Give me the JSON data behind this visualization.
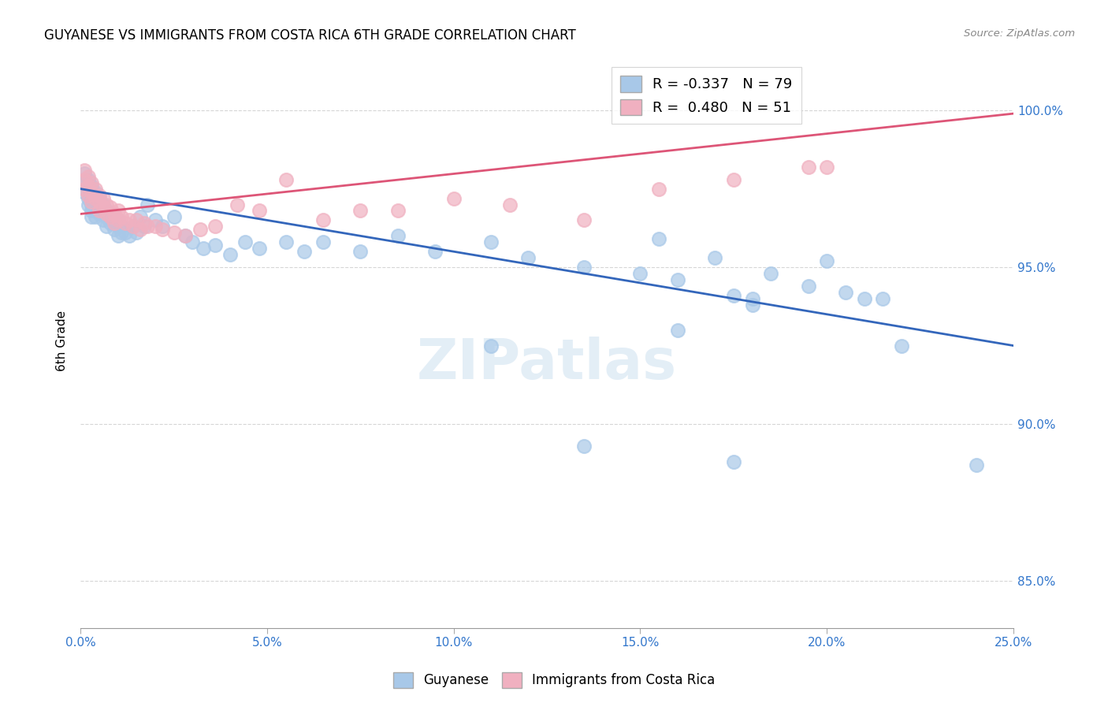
{
  "title": "GUYANESE VS IMMIGRANTS FROM COSTA RICA 6TH GRADE CORRELATION CHART",
  "source": "Source: ZipAtlas.com",
  "ylabel": "6th Grade",
  "xlim": [
    0.0,
    0.25
  ],
  "ylim": [
    0.835,
    1.018
  ],
  "blue_color": "#a8c8e8",
  "pink_color": "#f0b0c0",
  "blue_line_color": "#3366bb",
  "pink_line_color": "#dd5577",
  "blue_line_x": [
    0.0,
    0.25
  ],
  "blue_line_y": [
    0.975,
    0.925
  ],
  "pink_line_x": [
    0.0,
    0.25
  ],
  "pink_line_y": [
    0.967,
    0.999
  ],
  "watermark_text": "ZIPatlas",
  "watermark_fontsize": 52,
  "yticks": [
    0.85,
    0.9,
    0.95,
    1.0
  ],
  "ytick_labels": [
    "85.0%",
    "90.0%",
    "95.0%",
    "100.0%"
  ],
  "xticks": [
    0.0,
    0.05,
    0.1,
    0.15,
    0.2,
    0.25
  ],
  "xtick_labels": [
    "0.0%",
    "5.0%",
    "10.0%",
    "15.0%",
    "20.0%",
    "25.0%"
  ],
  "legend_blue": "R = -0.337   N = 79",
  "legend_pink": "R =  0.480   N = 51",
  "bottom_legend_blue": "Guyanese",
  "bottom_legend_pink": "Immigrants from Costa Rica",
  "blue_scatter": {
    "x": [
      0.001,
      0.001,
      0.001,
      0.002,
      0.002,
      0.002,
      0.002,
      0.003,
      0.003,
      0.003,
      0.003,
      0.003,
      0.004,
      0.004,
      0.004,
      0.004,
      0.005,
      0.005,
      0.005,
      0.006,
      0.006,
      0.006,
      0.007,
      0.007,
      0.007,
      0.008,
      0.008,
      0.009,
      0.009,
      0.01,
      0.01,
      0.01,
      0.011,
      0.011,
      0.012,
      0.013,
      0.014,
      0.015,
      0.016,
      0.017,
      0.018,
      0.02,
      0.022,
      0.025,
      0.028,
      0.03,
      0.033,
      0.036,
      0.04,
      0.044,
      0.048,
      0.055,
      0.06,
      0.065,
      0.075,
      0.085,
      0.095,
      0.11,
      0.12,
      0.135,
      0.15,
      0.155,
      0.16,
      0.17,
      0.175,
      0.18,
      0.185,
      0.195,
      0.205,
      0.215,
      0.11,
      0.16,
      0.18,
      0.2,
      0.21,
      0.22,
      0.135,
      0.175,
      0.24
    ],
    "y": [
      0.98,
      0.977,
      0.974,
      0.978,
      0.975,
      0.972,
      0.97,
      0.976,
      0.973,
      0.97,
      0.968,
      0.966,
      0.974,
      0.971,
      0.968,
      0.966,
      0.972,
      0.969,
      0.967,
      0.97,
      0.968,
      0.965,
      0.968,
      0.966,
      0.963,
      0.966,
      0.964,
      0.964,
      0.962,
      0.965,
      0.963,
      0.96,
      0.963,
      0.961,
      0.961,
      0.96,
      0.963,
      0.961,
      0.966,
      0.963,
      0.97,
      0.965,
      0.963,
      0.966,
      0.96,
      0.958,
      0.956,
      0.957,
      0.954,
      0.958,
      0.956,
      0.958,
      0.955,
      0.958,
      0.955,
      0.96,
      0.955,
      0.958,
      0.953,
      0.95,
      0.948,
      0.959,
      0.946,
      0.953,
      0.941,
      0.94,
      0.948,
      0.944,
      0.942,
      0.94,
      0.925,
      0.93,
      0.938,
      0.952,
      0.94,
      0.925,
      0.893,
      0.888,
      0.887
    ]
  },
  "pink_scatter": {
    "x": [
      0.001,
      0.001,
      0.001,
      0.002,
      0.002,
      0.002,
      0.003,
      0.003,
      0.003,
      0.004,
      0.004,
      0.005,
      0.005,
      0.005,
      0.006,
      0.006,
      0.007,
      0.007,
      0.008,
      0.008,
      0.009,
      0.009,
      0.01,
      0.01,
      0.011,
      0.012,
      0.013,
      0.014,
      0.015,
      0.016,
      0.017,
      0.018,
      0.02,
      0.022,
      0.025,
      0.028,
      0.032,
      0.036,
      0.042,
      0.048,
      0.055,
      0.065,
      0.075,
      0.085,
      0.1,
      0.115,
      0.135,
      0.155,
      0.175,
      0.195,
      0.2
    ],
    "y": [
      0.981,
      0.978,
      0.975,
      0.979,
      0.976,
      0.973,
      0.977,
      0.974,
      0.971,
      0.975,
      0.972,
      0.973,
      0.971,
      0.968,
      0.972,
      0.969,
      0.97,
      0.967,
      0.969,
      0.966,
      0.967,
      0.964,
      0.968,
      0.965,
      0.966,
      0.964,
      0.965,
      0.963,
      0.965,
      0.962,
      0.964,
      0.963,
      0.963,
      0.962,
      0.961,
      0.96,
      0.962,
      0.963,
      0.97,
      0.968,
      0.978,
      0.965,
      0.968,
      0.968,
      0.972,
      0.97,
      0.965,
      0.975,
      0.978,
      0.982,
      0.982
    ]
  }
}
